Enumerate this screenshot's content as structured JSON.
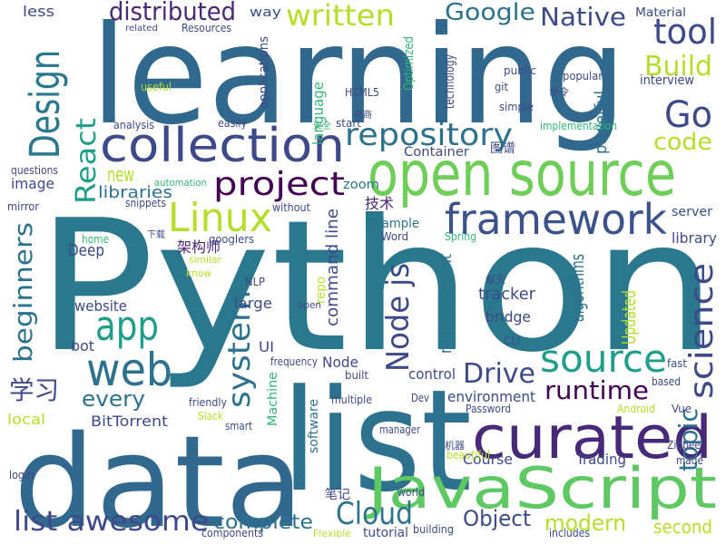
{
  "words": [
    {
      "text": "Python",
      "color": "#2a788e"
    },
    {
      "text": "learning",
      "color": "#31688e"
    },
    {
      "text": "data",
      "color": "#31688e"
    },
    {
      "text": "list",
      "color": "#2c728e"
    },
    {
      "text": "open source",
      "color": "#6ece58"
    },
    {
      "text": "curated",
      "color": "#482878"
    },
    {
      "text": "JavaScript",
      "color": "#5ec962"
    },
    {
      "text": "collection",
      "color": "#3e4989"
    },
    {
      "text": "framework",
      "color": "#3b528b"
    },
    {
      "text": "web",
      "color": "#2c728e"
    },
    {
      "text": "app",
      "color": "#1f9e89"
    },
    {
      "text": "Linux",
      "color": "#b5de2b"
    },
    {
      "text": "project",
      "color": "#440154"
    },
    {
      "text": "source",
      "color": "#1f9e89"
    },
    {
      "text": "repository",
      "color": "#2c728e"
    },
    {
      "text": "Design",
      "color": "#2a788e"
    },
    {
      "text": "Go",
      "color": "#3e4989"
    },
    {
      "text": "tool",
      "color": "#3e4989"
    },
    {
      "text": "Build",
      "color": "#b5de2b"
    },
    {
      "text": "code",
      "color": "#b5de2b"
    },
    {
      "text": "written",
      "color": "#b5de2b"
    },
    {
      "text": "distributed",
      "color": "#482878"
    },
    {
      "text": "Google",
      "color": "#2c728e"
    },
    {
      "text": "Native",
      "color": "#3e4989"
    },
    {
      "text": "science",
      "color": "#3e4989"
    },
    {
      "text": "Node js",
      "color": "#3e4989"
    },
    {
      "text": "system",
      "color": "#2c728e"
    },
    {
      "text": "beginners",
      "color": "#2c728e"
    },
    {
      "text": "React",
      "color": "#1f9e89"
    },
    {
      "text": "Drive",
      "color": "#3e4989"
    },
    {
      "text": "runtime",
      "color": "#440154"
    },
    {
      "text": "topic",
      "color": "#2c728e"
    },
    {
      "text": "Cloud",
      "color": "#2c728e"
    },
    {
      "text": "list awesome",
      "color": "#3e4989"
    },
    {
      "text": "complete",
      "color": "#2c728e"
    },
    {
      "text": "modern",
      "color": "#b5de2b"
    },
    {
      "text": "Object",
      "color": "#3e4989"
    },
    {
      "text": "every",
      "color": "#2c728e"
    },
    {
      "text": "new",
      "color": "#b5de2b"
    },
    {
      "text": "libraries",
      "color": "#2c728e"
    },
    {
      "text": "image",
      "color": "#3e4989"
    },
    {
      "text": "Deep",
      "color": "#3e4989"
    },
    {
      "text": "Course",
      "color": "#3e4989"
    },
    {
      "text": "Trading",
      "color": "#3e4989"
    },
    {
      "text": "second",
      "color": "#b5de2b"
    },
    {
      "text": "environment",
      "color": "#3e4989"
    },
    {
      "text": "tracker",
      "color": "#3e4989"
    },
    {
      "text": "bridge",
      "color": "#3e4989"
    },
    {
      "text": "Updated",
      "color": "#b5de2b"
    },
    {
      "text": "algorithms",
      "color": "#2c728e"
    },
    {
      "text": "powerful",
      "color": "#2c728e"
    },
    {
      "text": "command line",
      "color": "#3e4989"
    },
    {
      "text": "language",
      "color": "#35b779"
    },
    {
      "text": "reinforcement",
      "color": "#2c728e"
    },
    {
      "text": "BitTorrent",
      "color": "#3e4989"
    },
    {
      "text": "local",
      "color": "#b5de2b"
    },
    {
      "text": "library",
      "color": "#3e4989"
    },
    {
      "text": "server",
      "color": "#3e4989"
    },
    {
      "text": "interview",
      "color": "#3e4989"
    },
    {
      "text": "tutorial",
      "color": "#3e4989"
    },
    {
      "text": "software",
      "color": "#2c728e"
    },
    {
      "text": "Machine",
      "color": "#35b779"
    },
    {
      "text": "UI",
      "color": "#3e4989"
    },
    {
      "text": "Node",
      "color": "#3e4989"
    },
    {
      "text": "control",
      "color": "#3e4989"
    },
    {
      "text": "website",
      "color": "#3e4989"
    },
    {
      "text": "large",
      "color": "#3e4989"
    },
    {
      "text": "bot",
      "color": "#3e4989"
    },
    {
      "text": "Container",
      "color": "#3e4989"
    },
    {
      "text": "example",
      "color": "#2c728e"
    },
    {
      "text": "zoom",
      "color": "#2c728e"
    },
    {
      "text": "way",
      "color": "#3e4989"
    },
    {
      "text": "less",
      "color": "#3e4989"
    },
    {
      "text": "Material",
      "color": "#3e4989"
    },
    {
      "text": "applications",
      "color": "#3e4989"
    },
    {
      "text": "technology",
      "color": "#3e4989"
    },
    {
      "text": "Optimized",
      "color": "#35b779"
    },
    {
      "text": "public",
      "color": "#3e4989"
    },
    {
      "text": "popular",
      "color": "#3e4989"
    },
    {
      "text": "git",
      "color": "#3e4989"
    },
    {
      "text": "simple",
      "color": "#3e4989"
    },
    {
      "text": "implementation",
      "color": "#35b779"
    },
    {
      "text": "start",
      "color": "#3e4989"
    },
    {
      "text": "HTML5",
      "color": "#3e4989"
    },
    {
      "text": "Resources",
      "color": "#3e4989"
    },
    {
      "text": "related",
      "color": "#3e4989"
    },
    {
      "text": "useful",
      "color": "#b5de2b"
    },
    {
      "text": "analysis",
      "color": "#3e4989"
    },
    {
      "text": "easily",
      "color": "#3e4989"
    },
    {
      "text": "questions",
      "color": "#3e4989"
    },
    {
      "text": "mirror",
      "color": "#3e4989"
    },
    {
      "text": "automation",
      "color": "#35b779"
    },
    {
      "text": "snippets",
      "color": "#3e4989"
    },
    {
      "text": "without",
      "color": "#3e4989"
    },
    {
      "text": "Word",
      "color": "#3e4989"
    },
    {
      "text": "Spring",
      "color": "#35b779"
    },
    {
      "text": "googlers",
      "color": "#3e4989"
    },
    {
      "text": "home",
      "color": "#35b779"
    },
    {
      "text": "similar",
      "color": "#b5de2b"
    },
    {
      "text": "know",
      "color": "#b5de2b"
    },
    {
      "text": "NLP",
      "color": "#3e4989"
    },
    {
      "text": "repo",
      "color": "#b5de2b"
    },
    {
      "text": "open",
      "color": "#3e4989"
    },
    {
      "text": "frequency",
      "color": "#3e4989"
    },
    {
      "text": "built",
      "color": "#3e4989"
    },
    {
      "text": "multiple",
      "color": "#3e4989"
    },
    {
      "text": "friendly",
      "color": "#3e4989"
    },
    {
      "text": "Slack",
      "color": "#b5de2b"
    },
    {
      "text": "smart",
      "color": "#3e4989"
    },
    {
      "text": "manager",
      "color": "#3e4989"
    },
    {
      "text": "Password",
      "color": "#3e4989"
    },
    {
      "text": "Android",
      "color": "#b5de2b"
    },
    {
      "text": "Dev",
      "color": "#3e4989"
    },
    {
      "text": "CLI",
      "color": "#3e4989"
    },
    {
      "text": "beautiful",
      "color": "#b5de2b"
    },
    {
      "text": "login",
      "color": "#3e4989"
    },
    {
      "text": "world",
      "color": "#3e4989"
    },
    {
      "text": "components",
      "color": "#3e4989"
    },
    {
      "text": "includes",
      "color": "#3e4989"
    },
    {
      "text": "Flexible",
      "color": "#b5de2b"
    },
    {
      "text": "building",
      "color": "#3e4989"
    },
    {
      "text": "fast",
      "color": "#3e4989"
    },
    {
      "text": "based",
      "color": "#3e4989"
    },
    {
      "text": "Vue",
      "color": "#3e4989"
    },
    {
      "text": "Zigbee",
      "color": "#3e4989"
    },
    {
      "text": "made",
      "color": "#3e4989"
    },
    {
      "text": "学习",
      "color": "#3e4989"
    },
    {
      "text": "架构师",
      "color": "#482878"
    },
    {
      "text": "技术",
      "color": "#482878"
    },
    {
      "text": "图谱",
      "color": "#3e4989"
    },
    {
      "text": "安全",
      "color": "#35b779"
    },
    {
      "text": "笔记",
      "color": "#3e4989"
    },
    {
      "text": "下载",
      "color": "#3e4989"
    },
    {
      "text": "电商",
      "color": "#3e4989"
    },
    {
      "text": "命令",
      "color": "#3e4989"
    },
    {
      "text": "每天",
      "color": "#3e4989"
    },
    {
      "text": "机器",
      "color": "#3e4989"
    }
  ]
}
